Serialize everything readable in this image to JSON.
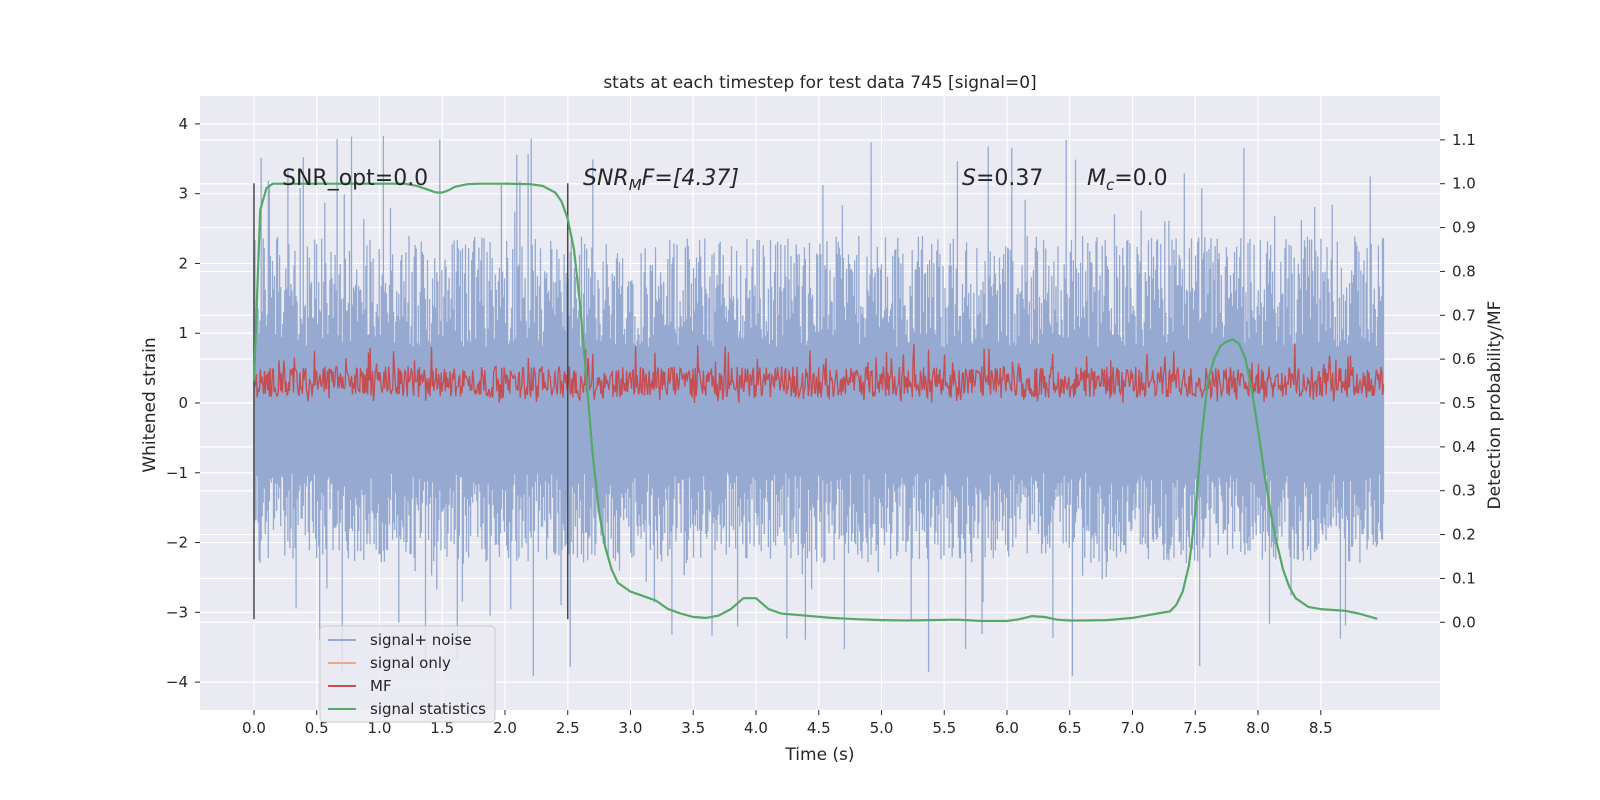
{
  "chart_data": {
    "type": "line",
    "title": "stats at each timestep for test data 745 [signal=0]",
    "xlabel": "Time (s)",
    "ylabel": "Whitened strain",
    "ylabel_right": "Detection probability/MF",
    "xlim": [
      -0.43,
      9.45
    ],
    "ylim": [
      -4.4,
      4.4
    ],
    "ylim_right": [
      -0.2,
      1.2
    ],
    "x_ticks": [
      0.0,
      0.5,
      1.0,
      1.5,
      2.0,
      2.5,
      3.0,
      3.5,
      4.0,
      4.5,
      5.0,
      5.5,
      6.0,
      6.5,
      7.0,
      7.5,
      8.0,
      8.5
    ],
    "x_tick_labels": [
      "0.0",
      "0.5",
      "1.0",
      "1.5",
      "2.0",
      "2.5",
      "3.0",
      "3.5",
      "4.0",
      "4.5",
      "5.0",
      "5.5",
      "6.0",
      "6.5",
      "7.0",
      "7.5",
      "8.0",
      "8.5"
    ],
    "y_ticks": [
      4,
      3,
      2,
      1,
      0,
      -1,
      -2,
      -3,
      -4
    ],
    "y_tick_labels": [
      "4",
      "3",
      "2",
      "1",
      "0",
      "−1",
      "−2",
      "−3",
      "−4"
    ],
    "y_right_ticks": [
      1.1,
      1.0,
      0.9,
      0.8,
      0.7,
      0.6,
      0.5,
      0.4,
      0.3,
      0.2,
      0.1,
      0.0
    ],
    "y_right_tick_labels": [
      "1.1",
      "1.0",
      "0.9",
      "0.8",
      "0.7",
      "0.6",
      "0.5",
      "0.4",
      "0.3",
      "0.2",
      "0.1",
      "0.0"
    ],
    "vlines": [
      {
        "x": 0.0,
        "ymin": -3.1,
        "ymax": 3.15
      },
      {
        "x": 2.5,
        "ymin": -3.1,
        "ymax": 3.15
      }
    ],
    "annotations": {
      "snr_opt": "SNR_opt=0.0",
      "snr_mf_sym": "SNR",
      "snr_mf_sub": "M",
      "snr_mf_rest": "F=[4.37]",
      "s_sym": "S",
      "s_rest": "=0.37",
      "mc_sym": "M",
      "mc_sub": "c",
      "mc_rest": "=0.0"
    },
    "legend": {
      "placement": "lower-left",
      "entries": [
        {
          "label": "signal+ noise",
          "color": "#95a9d1"
        },
        {
          "label": "signal only",
          "color": "#e9a98e"
        },
        {
          "label": "MF",
          "color": "#c44e52"
        },
        {
          "label": "signal statistics",
          "color": "#55a868"
        }
      ]
    },
    "noise_band": {
      "t_start": 0.0,
      "t_end": 9.0,
      "typical_range": [
        -2.0,
        1.9
      ],
      "peak_max": 4.0,
      "peak_min": -3.95
    },
    "mf_band": {
      "t_start": 0.0,
      "t_end": 9.0,
      "range": [
        0.0,
        0.85
      ]
    },
    "series": [
      {
        "name": "signal statistics",
        "axis": "right",
        "color": "#55a868",
        "x": [
          0.0,
          0.05,
          0.1,
          0.15,
          0.2,
          0.3,
          0.5,
          0.8,
          1.0,
          1.2,
          1.3,
          1.4,
          1.45,
          1.5,
          1.55,
          1.6,
          1.7,
          1.8,
          2.0,
          2.2,
          2.3,
          2.4,
          2.45,
          2.5,
          2.55,
          2.6,
          2.65,
          2.7,
          2.75,
          2.8,
          2.85,
          2.9,
          3.0,
          3.2,
          3.3,
          3.4,
          3.5,
          3.6,
          3.7,
          3.8,
          3.9,
          4.0,
          4.1,
          4.2,
          4.4,
          4.6,
          4.8,
          5.0,
          5.2,
          5.4,
          5.6,
          5.8,
          6.0,
          6.1,
          6.2,
          6.3,
          6.4,
          6.5,
          6.6,
          6.8,
          7.0,
          7.1,
          7.2,
          7.3,
          7.35,
          7.4,
          7.45,
          7.5,
          7.55,
          7.6,
          7.65,
          7.7,
          7.75,
          7.8,
          7.85,
          7.9,
          7.95,
          8.0,
          8.05,
          8.1,
          8.15,
          8.2,
          8.25,
          8.3,
          8.4,
          8.5,
          8.6,
          8.7,
          8.8,
          8.9,
          8.95
        ],
        "values": [
          0.55,
          0.94,
          0.99,
          1.0,
          1.0,
          1.0,
          1.0,
          1.0,
          1.0,
          1.0,
          0.995,
          0.985,
          0.98,
          0.98,
          0.985,
          0.993,
          0.999,
          1.0,
          1.0,
          0.999,
          0.995,
          0.98,
          0.96,
          0.92,
          0.85,
          0.72,
          0.55,
          0.38,
          0.25,
          0.17,
          0.12,
          0.09,
          0.07,
          0.05,
          0.03,
          0.02,
          0.012,
          0.01,
          0.015,
          0.03,
          0.055,
          0.055,
          0.03,
          0.02,
          0.015,
          0.01,
          0.007,
          0.005,
          0.004,
          0.005,
          0.006,
          0.003,
          0.003,
          0.007,
          0.014,
          0.012,
          0.006,
          0.004,
          0.004,
          0.005,
          0.01,
          0.015,
          0.02,
          0.025,
          0.04,
          0.07,
          0.13,
          0.25,
          0.42,
          0.55,
          0.6,
          0.63,
          0.64,
          0.645,
          0.635,
          0.6,
          0.53,
          0.44,
          0.34,
          0.25,
          0.18,
          0.12,
          0.08,
          0.055,
          0.035,
          0.03,
          0.028,
          0.026,
          0.02,
          0.012,
          0.008
        ]
      }
    ]
  }
}
